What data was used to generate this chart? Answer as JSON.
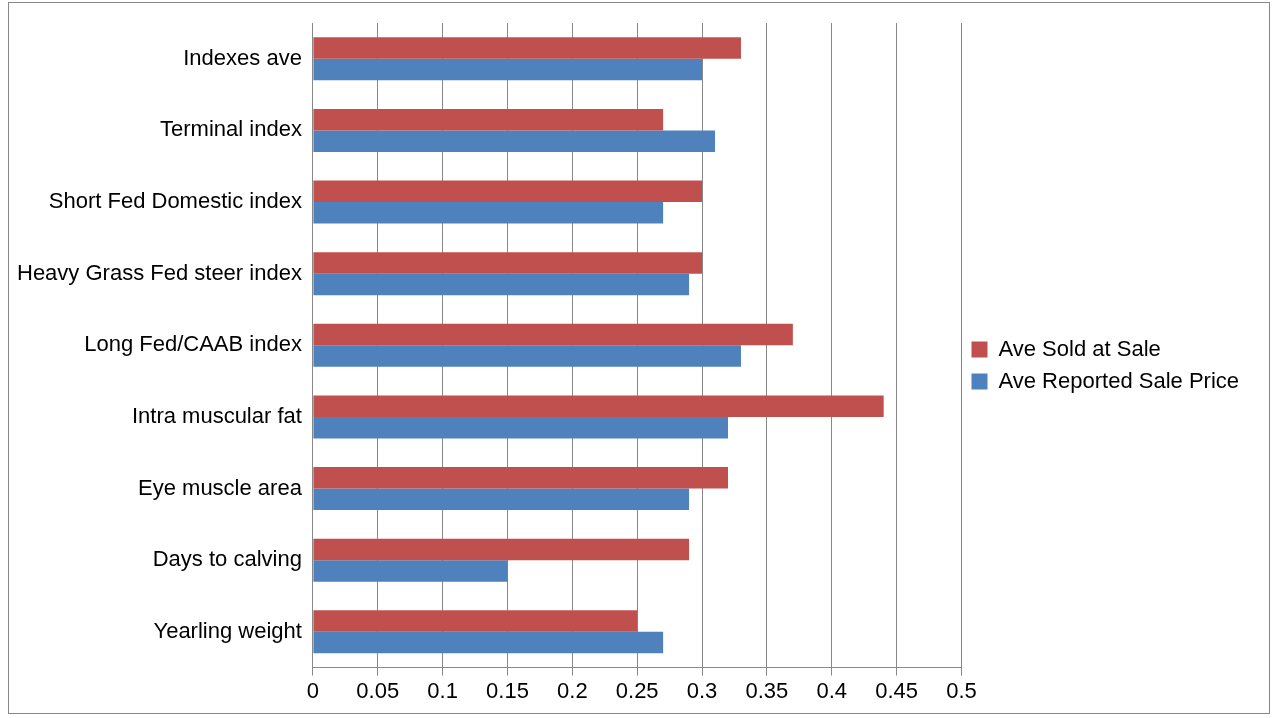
{
  "chart_data": {
    "type": "bar",
    "orientation": "horizontal",
    "categories": [
      "Indexes ave",
      "Terminal index",
      "Short Fed Domestic index",
      "Heavy Grass Fed steer index",
      "Long Fed/CAAB index",
      "Intra muscular fat",
      "Eye muscle area",
      "Days to calving",
      "Yearling weight"
    ],
    "series": [
      {
        "name": "Ave Sold at Sale",
        "color": "#c0504d",
        "values": [
          0.33,
          0.27,
          0.3,
          0.3,
          0.37,
          0.44,
          0.32,
          0.29,
          0.25
        ]
      },
      {
        "name": "Ave Reported Sale Price",
        "color": "#4f81bd",
        "values": [
          0.3,
          0.31,
          0.27,
          0.29,
          0.33,
          0.32,
          0.29,
          0.15,
          0.27
        ]
      }
    ],
    "xlim": [
      0,
      0.5
    ],
    "xticks": [
      0,
      0.05,
      0.1,
      0.15,
      0.2,
      0.25,
      0.3,
      0.35,
      0.4,
      0.45,
      0.5
    ],
    "grid": "x",
    "legend": "right"
  }
}
